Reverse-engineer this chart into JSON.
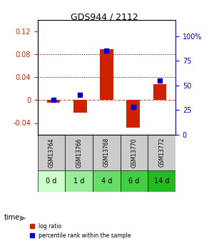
{
  "title": "GDS944 / 2112",
  "samples": [
    "GSM13764",
    "GSM13766",
    "GSM13768",
    "GSM13770",
    "GSM13772"
  ],
  "time_labels": [
    "0 d",
    "1 d",
    "4 d",
    "6 d",
    "14 d"
  ],
  "log_ratio": [
    -0.005,
    -0.022,
    0.088,
    -0.048,
    0.028
  ],
  "percentile": [
    35,
    40,
    85,
    28,
    55
  ],
  "bar_color": "#cc2200",
  "dot_color": "#0000cc",
  "ylim_left": [
    -0.06,
    0.14
  ],
  "ylim_right": [
    0,
    116.67
  ],
  "yticks_left": [
    -0.04,
    0,
    0.04,
    0.08,
    0.12
  ],
  "yticks_right": [
    0,
    25,
    50,
    75,
    100
  ],
  "hlines": [
    0.04,
    0.08
  ],
  "zero_line": 0.0,
  "grid_color": "#000000",
  "zero_color": "#cc2200",
  "sample_bg": "#cccccc",
  "time_bg_colors": [
    "#ccffcc",
    "#99ee99",
    "#66dd66",
    "#44cc44",
    "#22bb22"
  ],
  "bar_width": 0.5,
  "legend_items": [
    "log ratio",
    "percentile rank within the sample"
  ]
}
